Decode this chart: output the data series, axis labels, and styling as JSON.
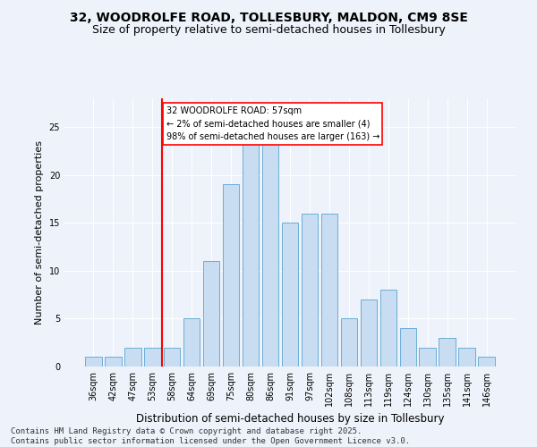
{
  "title1": "32, WOODROLFE ROAD, TOLLESBURY, MALDON, CM9 8SE",
  "title2": "Size of property relative to semi-detached houses in Tollesbury",
  "xlabel": "Distribution of semi-detached houses by size in Tollesbury",
  "ylabel": "Number of semi-detached properties",
  "footer1": "Contains HM Land Registry data © Crown copyright and database right 2025.",
  "footer2": "Contains public sector information licensed under the Open Government Licence v3.0.",
  "categories": [
    "36sqm",
    "42sqm",
    "47sqm",
    "53sqm",
    "58sqm",
    "64sqm",
    "69sqm",
    "75sqm",
    "80sqm",
    "86sqm",
    "91sqm",
    "97sqm",
    "102sqm",
    "108sqm",
    "113sqm",
    "119sqm",
    "124sqm",
    "130sqm",
    "135sqm",
    "141sqm",
    "146sqm"
  ],
  "values": [
    1,
    1,
    2,
    2,
    2,
    5,
    11,
    19,
    24,
    24,
    15,
    16,
    16,
    5,
    7,
    8,
    4,
    2,
    3,
    2,
    1
  ],
  "bar_color": "#c9ddf2",
  "bar_edge_color": "#6aaed6",
  "red_line_index": 4,
  "annotation_text": "32 WOODROLFE ROAD: 57sqm\n← 2% of semi-detached houses are smaller (4)\n98% of semi-detached houses are larger (163) →",
  "annotation_box_color": "white",
  "annotation_box_edge": "red",
  "vline_color": "red",
  "ylim": [
    0,
    28
  ],
  "yticks": [
    0,
    5,
    10,
    15,
    20,
    25
  ],
  "bg_color": "#eef2fa",
  "grid_color": "white",
  "title1_fontsize": 10,
  "title2_fontsize": 9,
  "xlabel_fontsize": 8.5,
  "ylabel_fontsize": 8,
  "tick_fontsize": 7,
  "footer_fontsize": 6.5
}
